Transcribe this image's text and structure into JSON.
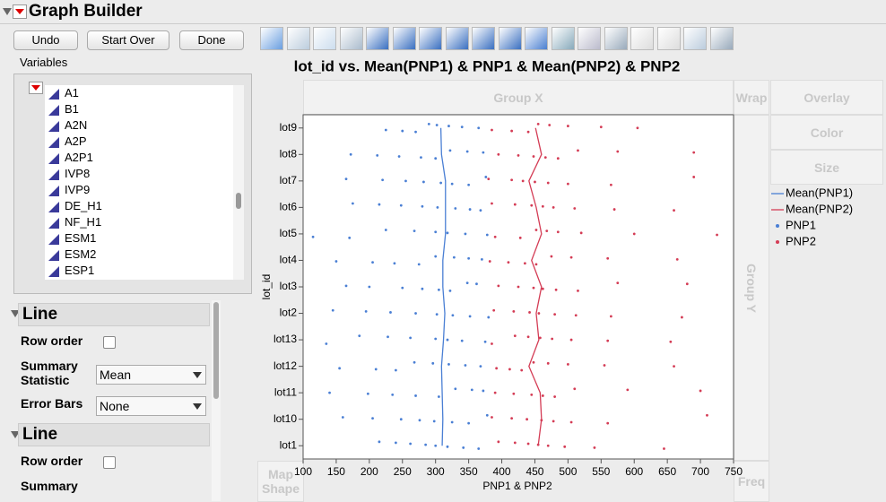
{
  "ui": {
    "header": {
      "title": "Graph Builder"
    },
    "buttons": [
      "Undo",
      "Start Over",
      "Done"
    ],
    "variables": {
      "label": "Variables",
      "items": [
        "A1",
        "B1",
        "A2N",
        "A2P",
        "A2P1",
        "IVP8",
        "IVP9",
        "DE_H1",
        "NF_H1",
        "ESM1",
        "ESM2",
        "ESP1"
      ]
    },
    "zones": {
      "group_x": "Group X",
      "wrap": "Wrap",
      "overlay": "Overlay",
      "color": "Color",
      "size": "Size",
      "group_y": "Group Y",
      "map_shape": "Map Shape",
      "freq": "Freq"
    },
    "panels": [
      {
        "title": "Line",
        "row_order": "Row order",
        "summary_statistic": "Summary Statistic",
        "summary_value": "Mean",
        "error_bars": "Error Bars",
        "error_value": "None"
      },
      {
        "title": "Line",
        "row_order": "Row order",
        "summary_statistic": "Summary"
      }
    ]
  },
  "chart_data": {
    "type": "combo",
    "title": "lot_id vs. Mean(PNP1) & PNP1 & Mean(PNP2) & PNP2",
    "x_label": "PNP1 & PNP2",
    "y_label": "lot_id",
    "categories": [
      "lot1",
      "lot10",
      "lot11",
      "lot12",
      "lot13",
      "lot2",
      "lot3",
      "lot4",
      "lot5",
      "lot6",
      "lot7",
      "lot8",
      "lot9"
    ],
    "xlim": [
      100,
      750
    ],
    "xticks": [
      100,
      150,
      200,
      250,
      300,
      350,
      400,
      450,
      500,
      550,
      600,
      650,
      700,
      750
    ],
    "legend": "right",
    "grid": false,
    "series": [
      {
        "name": "Mean(PNP1)",
        "type": "line",
        "color": "#4a7fd4",
        "values": [
          310,
          311,
          310,
          309,
          312,
          314,
          311,
          311,
          315,
          315,
          315,
          309,
          308
        ]
      },
      {
        "name": "Mean(PNP2)",
        "type": "line",
        "color": "#d43c55",
        "values": [
          455,
          460,
          458,
          441,
          456,
          452,
          460,
          445,
          460,
          452,
          441,
          460,
          451
        ]
      },
      {
        "name": "PNP1",
        "type": "scatter",
        "color": "#4a7fd4",
        "values": [
          [
            215,
            240,
            262,
            285,
            300,
            318,
            342,
            365
          ],
          [
            160,
            205,
            248,
            276,
            298,
            325,
            350,
            378
          ],
          [
            140,
            198,
            235,
            270,
            305,
            330,
            355,
            372
          ],
          [
            155,
            210,
            240,
            268,
            296,
            320,
            345,
            368
          ],
          [
            135,
            185,
            228,
            262,
            300,
            318,
            340,
            375
          ],
          [
            145,
            195,
            232,
            270,
            302,
            326,
            352,
            380
          ],
          [
            165,
            200,
            250,
            280,
            305,
            322,
            348,
            362
          ],
          [
            150,
            205,
            238,
            275,
            300,
            328,
            350,
            370
          ],
          [
            115,
            170,
            225,
            268,
            300,
            318,
            345,
            378
          ],
          [
            175,
            215,
            248,
            280,
            303,
            330,
            352,
            368
          ],
          [
            165,
            220,
            255,
            282,
            308,
            325,
            350,
            376
          ],
          [
            172,
            212,
            245,
            278,
            300,
            322,
            348,
            372
          ],
          [
            225,
            250,
            270,
            290,
            302,
            320,
            340,
            365
          ]
        ]
      },
      {
        "name": "PNP2",
        "type": "scatter",
        "color": "#d43c55",
        "values": [
          [
            395,
            420,
            440,
            455,
            470,
            495,
            540,
            645
          ],
          [
            385,
            415,
            438,
            460,
            478,
            505,
            560,
            710
          ],
          [
            390,
            418,
            445,
            462,
            480,
            510,
            590,
            700
          ],
          [
            392,
            412,
            430,
            448,
            470,
            500,
            555,
            660
          ],
          [
            385,
            420,
            440,
            458,
            476,
            505,
            560,
            655
          ],
          [
            388,
            418,
            442,
            456,
            480,
            512,
            565,
            672
          ],
          [
            395,
            425,
            448,
            462,
            482,
            515,
            575,
            680
          ],
          [
            382,
            410,
            435,
            452,
            475,
            505,
            560,
            665
          ],
          [
            390,
            428,
            452,
            468,
            485,
            520,
            600,
            725
          ],
          [
            385,
            420,
            445,
            462,
            478,
            510,
            570,
            660
          ],
          [
            380,
            415,
            432,
            450,
            470,
            500,
            565,
            690
          ],
          [
            395,
            425,
            448,
            466,
            485,
            515,
            575,
            690
          ],
          [
            385,
            415,
            440,
            455,
            472,
            500,
            550,
            605
          ]
        ]
      }
    ]
  }
}
